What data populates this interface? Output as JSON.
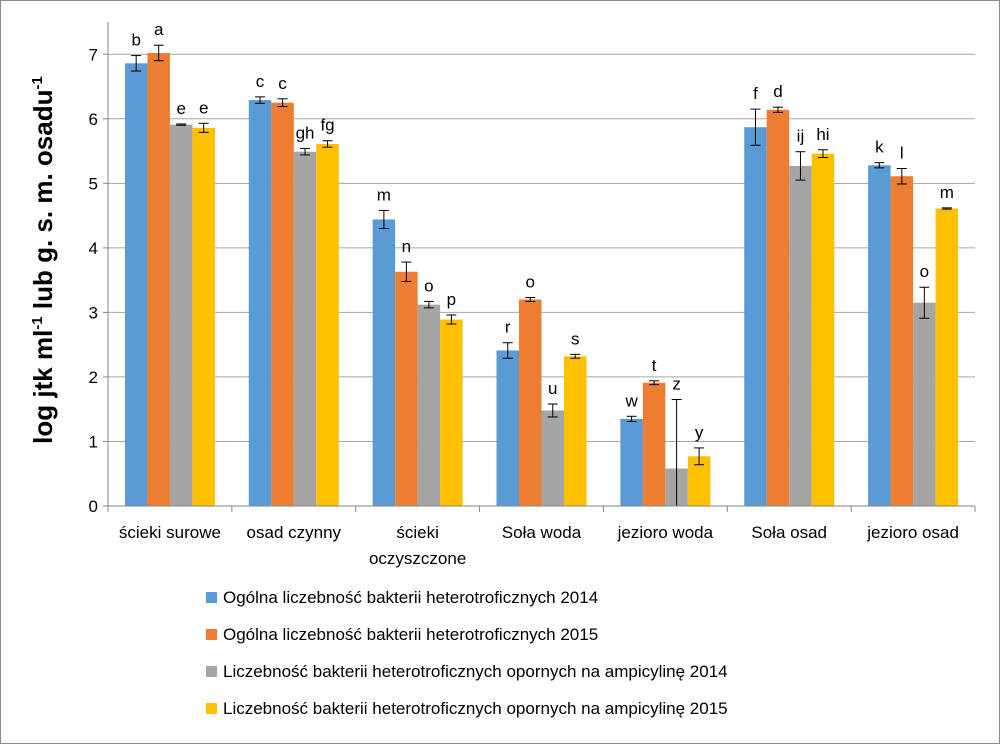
{
  "chart_data": {
    "type": "bar",
    "ylabel": {
      "parts": [
        {
          "text": "log jtk ml",
          "sup": false
        },
        {
          "text": "-1",
          "sup": true
        },
        {
          "text": " lub g. s. m. osadu",
          "sup": false
        },
        {
          "text": "-1",
          "sup": true
        }
      ]
    },
    "ylim": [
      0,
      7.5
    ],
    "yticks": [
      0,
      1,
      2,
      3,
      4,
      5,
      6,
      7
    ],
    "grid": true,
    "legend_position": "bottom",
    "categories": [
      [
        "ścieki surowe"
      ],
      [
        "osad czynny"
      ],
      [
        "ścieki",
        "oczyszczone"
      ],
      [
        "Soła woda"
      ],
      [
        "jezioro woda"
      ],
      [
        "Soła osad"
      ],
      [
        "jezioro osad"
      ]
    ],
    "series": [
      {
        "name": "Ogólna liczebność bakterii heterotroficznych 2014",
        "color": "#5b9bd5",
        "values": [
          6.86,
          6.29,
          4.44,
          2.41,
          1.35,
          5.87,
          5.28
        ],
        "errors": [
          0.12,
          0.05,
          0.14,
          0.12,
          0.04,
          0.28,
          0.04
        ],
        "labels": [
          "b",
          "c",
          "m",
          "r",
          "w",
          "f",
          "k"
        ]
      },
      {
        "name": "Ogólna liczebność bakterii heterotroficznych 2015",
        "color": "#ed7d31",
        "values": [
          7.02,
          6.25,
          3.63,
          3.2,
          1.91,
          6.14,
          5.11
        ],
        "errors": [
          0.12,
          0.06,
          0.15,
          0.03,
          0.03,
          0.04,
          0.12
        ],
        "labels": [
          "a",
          "c",
          "n",
          "o",
          "t",
          "d",
          "l"
        ]
      },
      {
        "name": "Liczebność bakterii heterotroficznych opornych na ampicylinę 2014",
        "color": "#a5a5a5",
        "values": [
          5.91,
          5.49,
          3.12,
          1.48,
          0.58,
          5.27,
          3.15
        ],
        "errors": [
          0.01,
          0.05,
          0.05,
          0.1,
          1.07,
          0.22,
          0.24
        ],
        "labels": [
          "e",
          "gh",
          "o",
          "u",
          "z",
          "ij",
          "o"
        ]
      },
      {
        "name": "Liczebność bakterii heterotroficznych opornych na ampicylinę 2015",
        "color": "#ffc000",
        "values": [
          5.86,
          5.61,
          2.89,
          2.32,
          0.77,
          5.46,
          4.61
        ],
        "errors": [
          0.07,
          0.05,
          0.07,
          0.03,
          0.13,
          0.06,
          0.01
        ],
        "labels": [
          "e",
          "fg",
          "p",
          "s",
          "y",
          "hi",
          "m"
        ]
      }
    ]
  }
}
